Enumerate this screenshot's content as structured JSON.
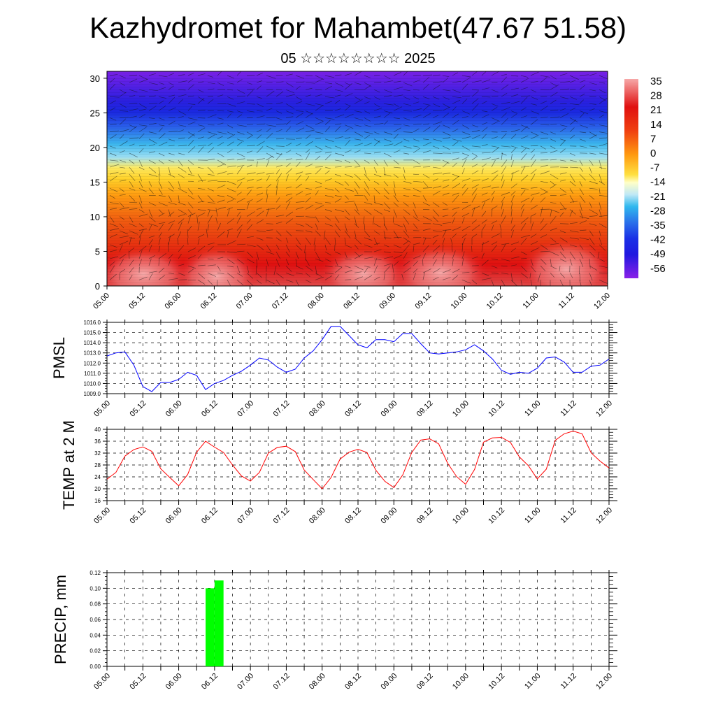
{
  "header": {
    "title": "Kazhydromet for Mahambet(47.67 51.58)",
    "subtitle": "05 ☆☆☆☆☆☆☆☆ 2025"
  },
  "time_labels": [
    "05.00",
    "05.12",
    "06.00",
    "06.12",
    "07.00",
    "07.12",
    "08.00",
    "08.12",
    "09.00",
    "09.12",
    "10.00",
    "10.12",
    "11.00",
    "11.12",
    "12.00"
  ],
  "chart_data": [
    {
      "type": "heatmap",
      "y_ticks": [
        "0",
        "5",
        "10",
        "15",
        "20",
        "25",
        "30"
      ],
      "ylim": [
        0,
        31
      ],
      "x_ticks": [
        "05.00",
        "05.12",
        "06.00",
        "06.12",
        "07.00",
        "07.12",
        "08.00",
        "08.12",
        "09.00",
        "09.12",
        "10.00",
        "10.12",
        "11.00",
        "11.12",
        "12.00"
      ],
      "colorbar_labels": [
        "35",
        "28",
        "21",
        "14",
        "7",
        "0",
        "-7",
        "-14",
        "-21",
        "-28",
        "-35",
        "-42",
        "-49",
        "-56"
      ],
      "colorbar_range": [
        -60,
        38
      ],
      "colors": {
        "cold": "#7a1ee0",
        "blue": "#1a2ee6",
        "cyan": "#4cc4ee",
        "yellow": "#ffe040",
        "orange": "#ff9010",
        "red": "#e81010",
        "pink": "#f6a0a0"
      }
    },
    {
      "type": "line",
      "ylabel": "PMSL",
      "ylim": [
        1009.0,
        1016.0
      ],
      "y_ticks": [
        "1009.0",
        "1010.0",
        "1011.0",
        "1012.0",
        "1013.0",
        "1014.0",
        "1015.0",
        "1016.0"
      ],
      "x": [
        "05.00",
        "05.03",
        "05.06",
        "05.09",
        "05.12",
        "05.15",
        "05.18",
        "05.21",
        "06.00",
        "06.03",
        "06.06",
        "06.09",
        "06.12",
        "06.15",
        "06.18",
        "06.21",
        "07.00",
        "07.03",
        "07.06",
        "07.09",
        "07.12",
        "07.15",
        "07.18",
        "07.21",
        "08.00",
        "08.03",
        "08.06",
        "08.09",
        "08.12",
        "08.15",
        "08.18",
        "08.21",
        "09.00",
        "09.03",
        "09.06",
        "09.09",
        "09.12",
        "09.15",
        "09.18",
        "09.21",
        "10.00",
        "10.03",
        "10.06",
        "10.09",
        "10.12",
        "10.15",
        "10.18",
        "10.21",
        "11.00",
        "11.03",
        "11.06",
        "11.09",
        "11.12",
        "11.15",
        "11.18",
        "11.21",
        "12.00"
      ],
      "series": [
        {
          "color": "#0000ff",
          "values": [
            1012.7,
            1013.0,
            1013.1,
            1011.8,
            1009.7,
            1009.2,
            1010.1,
            1010.1,
            1010.4,
            1011.1,
            1010.8,
            1009.4,
            1010.0,
            1010.3,
            1010.8,
            1011.2,
            1011.8,
            1012.5,
            1012.3,
            1011.6,
            1011.1,
            1011.4,
            1012.5,
            1013.2,
            1014.3,
            1015.6,
            1015.6,
            1014.7,
            1013.8,
            1013.5,
            1014.3,
            1014.3,
            1014.1,
            1014.9,
            1014.9,
            1013.9,
            1013.0,
            1012.9,
            1013.0,
            1013.1,
            1013.3,
            1013.8,
            1013.2,
            1012.4,
            1011.3,
            1010.9,
            1011.1,
            1011.0,
            1011.5,
            1012.5,
            1012.6,
            1012.1,
            1011.1,
            1011.1,
            1011.7,
            1011.8,
            1012.4
          ]
        }
      ]
    },
    {
      "type": "line",
      "ylabel": "TEMP at 2 M",
      "ylim": [
        16,
        40
      ],
      "y_ticks": [
        "16",
        "20",
        "24",
        "28",
        "32",
        "36",
        "40"
      ],
      "x": [
        "05.00",
        "05.03",
        "05.06",
        "05.09",
        "05.12",
        "05.15",
        "05.18",
        "05.21",
        "06.00",
        "06.03",
        "06.06",
        "06.09",
        "06.12",
        "06.15",
        "06.18",
        "06.21",
        "07.00",
        "07.03",
        "07.06",
        "07.09",
        "07.12",
        "07.15",
        "07.18",
        "07.21",
        "08.00",
        "08.03",
        "08.06",
        "08.09",
        "08.12",
        "08.15",
        "08.18",
        "08.21",
        "09.00",
        "09.03",
        "09.06",
        "09.09",
        "09.12",
        "09.15",
        "09.18",
        "09.21",
        "10.00",
        "10.03",
        "10.06",
        "10.09",
        "10.12",
        "10.15",
        "10.18",
        "10.21",
        "11.00",
        "11.03",
        "11.06",
        "11.09",
        "11.12",
        "11.15",
        "11.18",
        "11.21",
        "12.00"
      ],
      "series": [
        {
          "color": "#ff0000",
          "values": [
            23.2,
            25.5,
            31.0,
            33.2,
            34.1,
            32.6,
            26.7,
            23.8,
            21.0,
            24.8,
            32.3,
            36.0,
            34.0,
            32.2,
            28.0,
            24.3,
            22.6,
            25.5,
            32.0,
            33.9,
            34.3,
            32.5,
            26.3,
            23.1,
            20.0,
            23.8,
            30.0,
            32.3,
            33.3,
            32.2,
            26.2,
            22.5,
            20.4,
            24.7,
            32.2,
            36.4,
            36.8,
            35.1,
            28.6,
            24.1,
            21.5,
            26.5,
            35.7,
            37.1,
            37.3,
            35.6,
            30.7,
            27.8,
            23.3,
            26.6,
            36.3,
            38.5,
            39.4,
            38.5,
            32.1,
            29.3,
            27.0
          ]
        }
      ]
    },
    {
      "type": "bar",
      "ylabel": "PRECIP, mm",
      "ylim": [
        0.0,
        0.12
      ],
      "y_ticks": [
        "0.00",
        "0.02",
        "0.04",
        "0.06",
        "0.08",
        "0.10",
        "0.12"
      ],
      "x": [
        "06.09",
        "06.12"
      ],
      "series": [
        {
          "color": "#00ff00",
          "values": [
            0.1,
            0.11
          ]
        }
      ]
    }
  ]
}
